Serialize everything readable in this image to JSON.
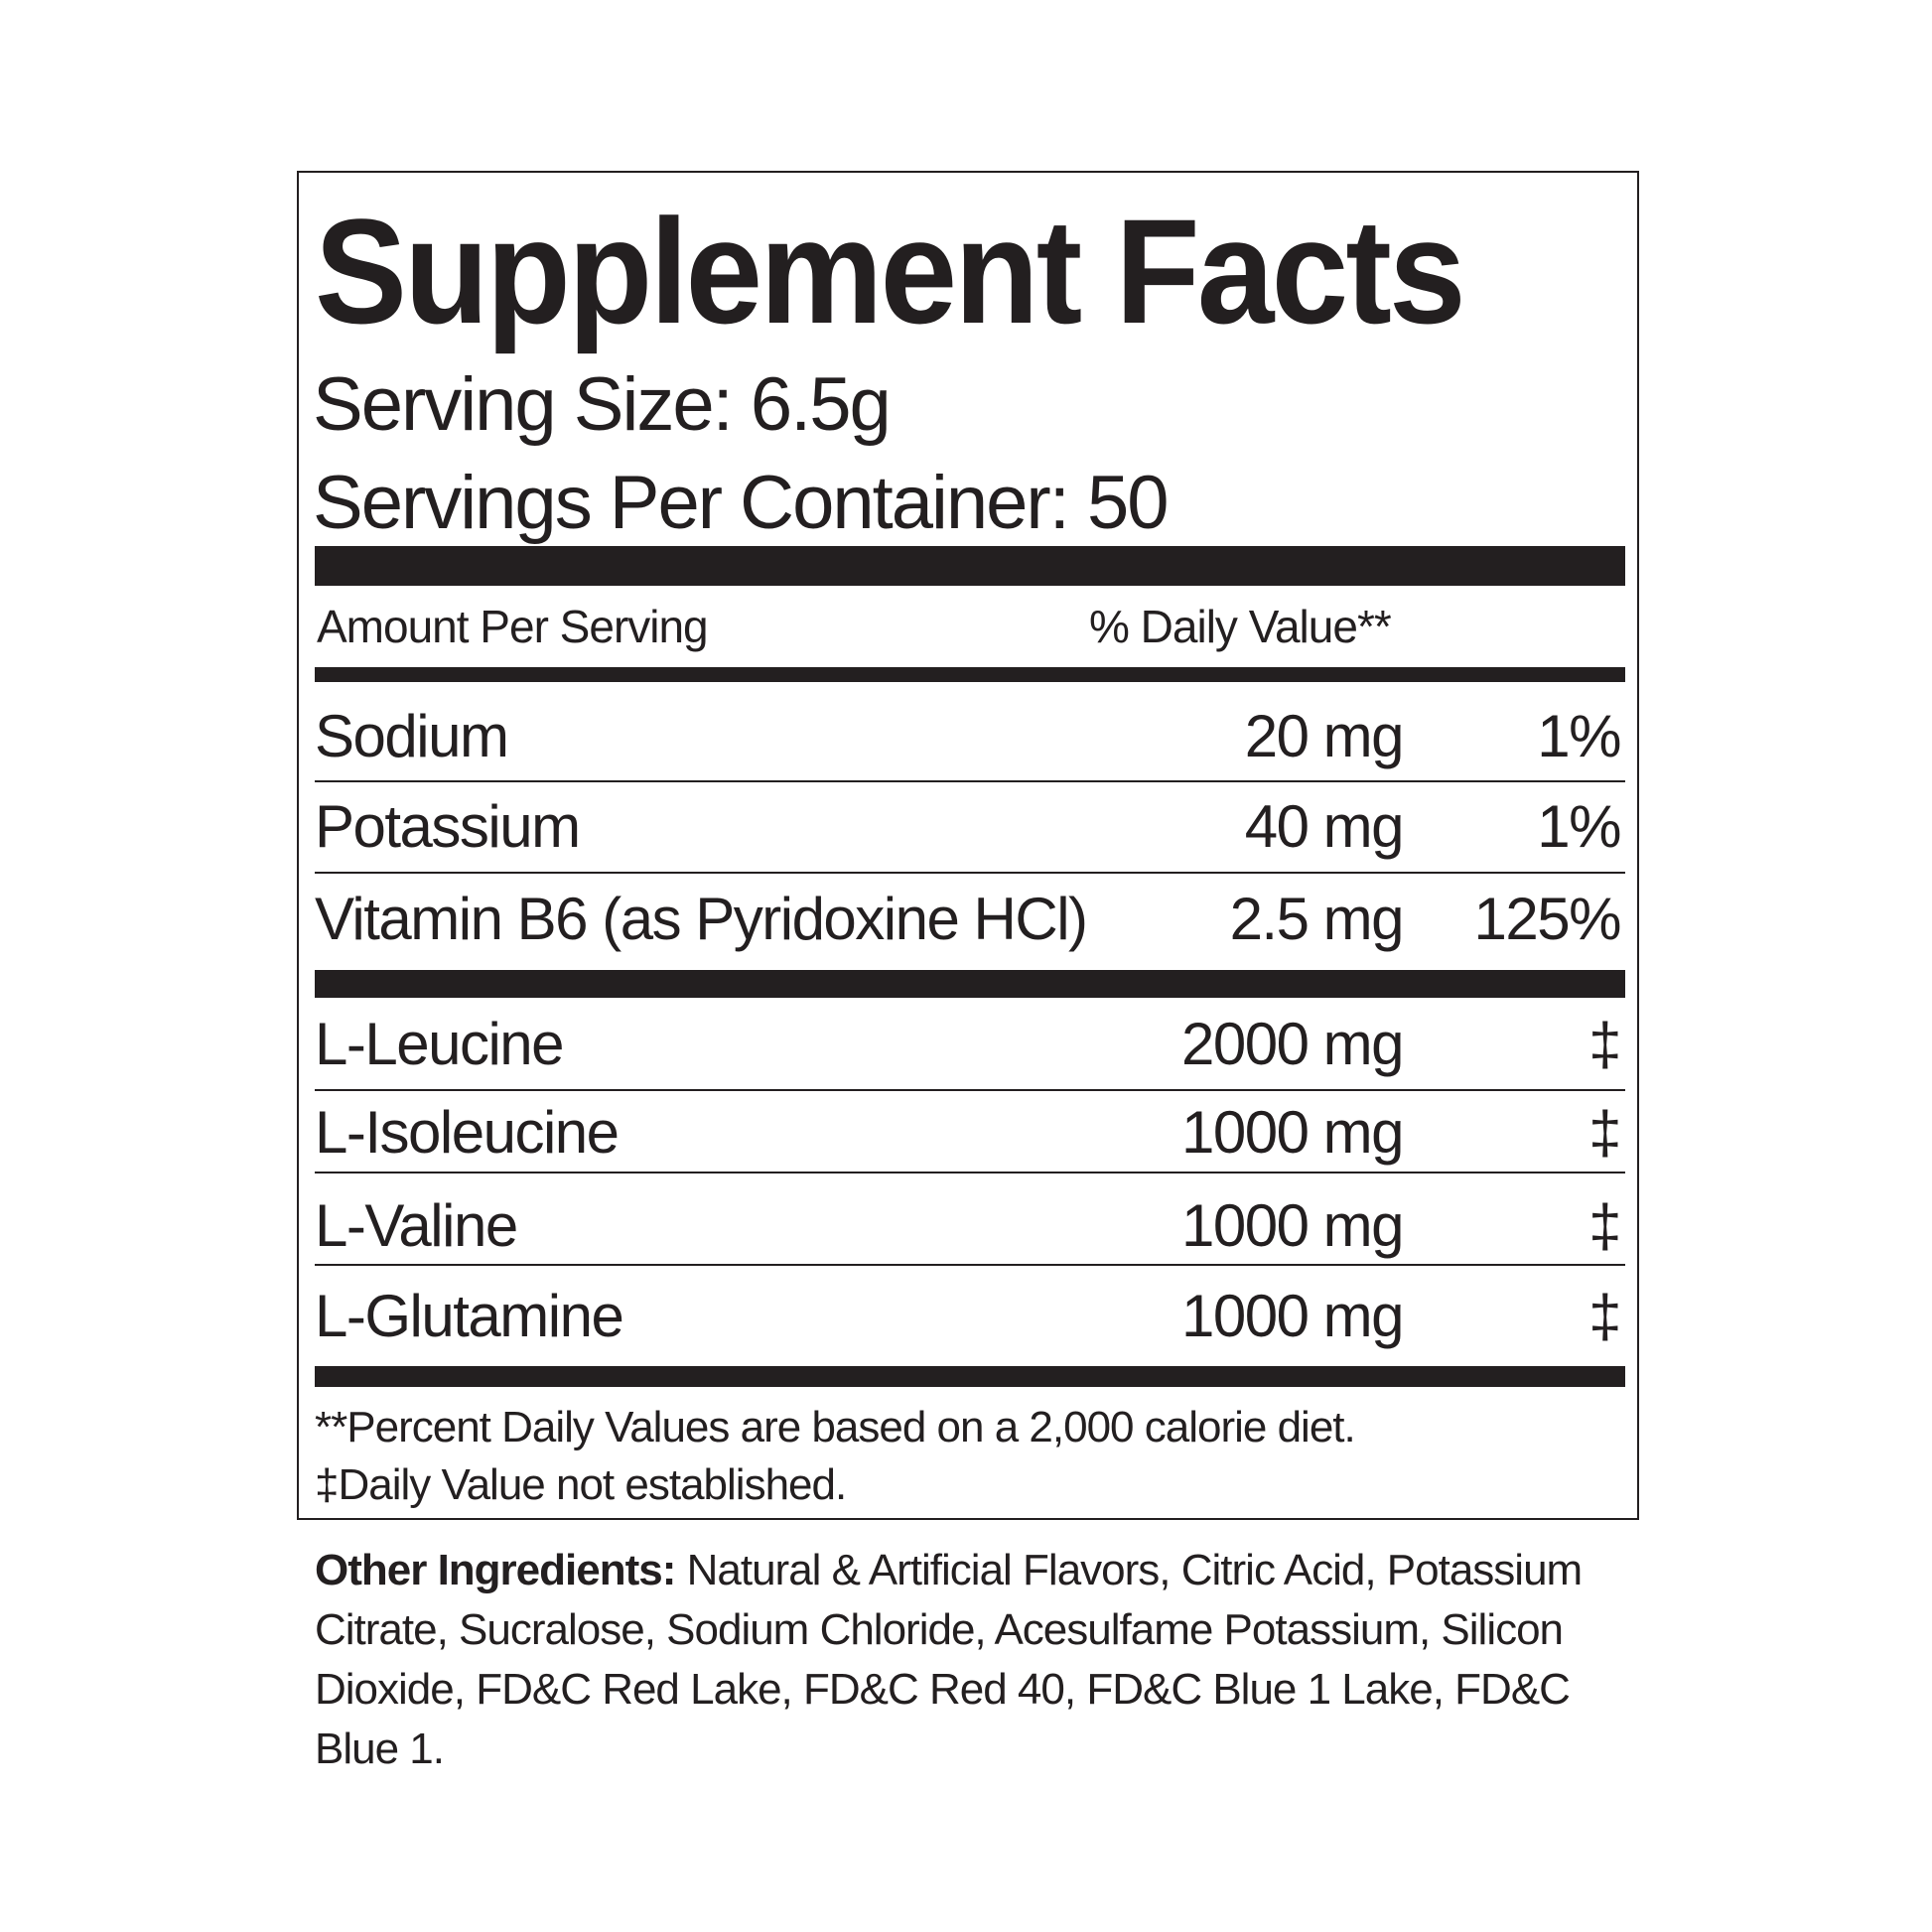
{
  "label": {
    "title": "Supplement Facts",
    "serving_size": "Serving Size: 6.5g",
    "servings_per_container": "Servings Per Container: 50",
    "amount_header": "Amount Per Serving",
    "dv_header": "% Daily Value**",
    "nutrients": [
      {
        "name": "Sodium",
        "amount": "20 mg",
        "dv": "1%"
      },
      {
        "name": "Potassium",
        "amount": "40 mg",
        "dv": "1%"
      },
      {
        "name": "Vitamin B6 (as Pyridoxine HCl)",
        "amount": "2.5 mg",
        "dv": "125%"
      }
    ],
    "amino_acids": [
      {
        "name": "L-Leucine",
        "amount": "2000 mg",
        "dv": "‡"
      },
      {
        "name": "L-Isoleucine",
        "amount": "1000 mg",
        "dv": "‡"
      },
      {
        "name": "L-Valine",
        "amount": "1000 mg",
        "dv": "‡"
      },
      {
        "name": "L-Glutamine",
        "amount": "1000 mg",
        "dv": "‡"
      }
    ],
    "footnote_1": "**Percent Daily Values are based on a 2,000 calorie diet.",
    "footnote_2": "‡Daily Value not established."
  },
  "other_ingredients": {
    "label": "Other Ingredients:",
    "text": " Natural & Artificial Flavors, Citric Acid, Potassium Citrate, Sucralose, Sodium Chloride, Acesulfame Potassium, Silicon Dioxide, FD&C Red Lake, FD&C Red 40, FD&C Blue 1 Lake, FD&C Blue 1."
  }
}
